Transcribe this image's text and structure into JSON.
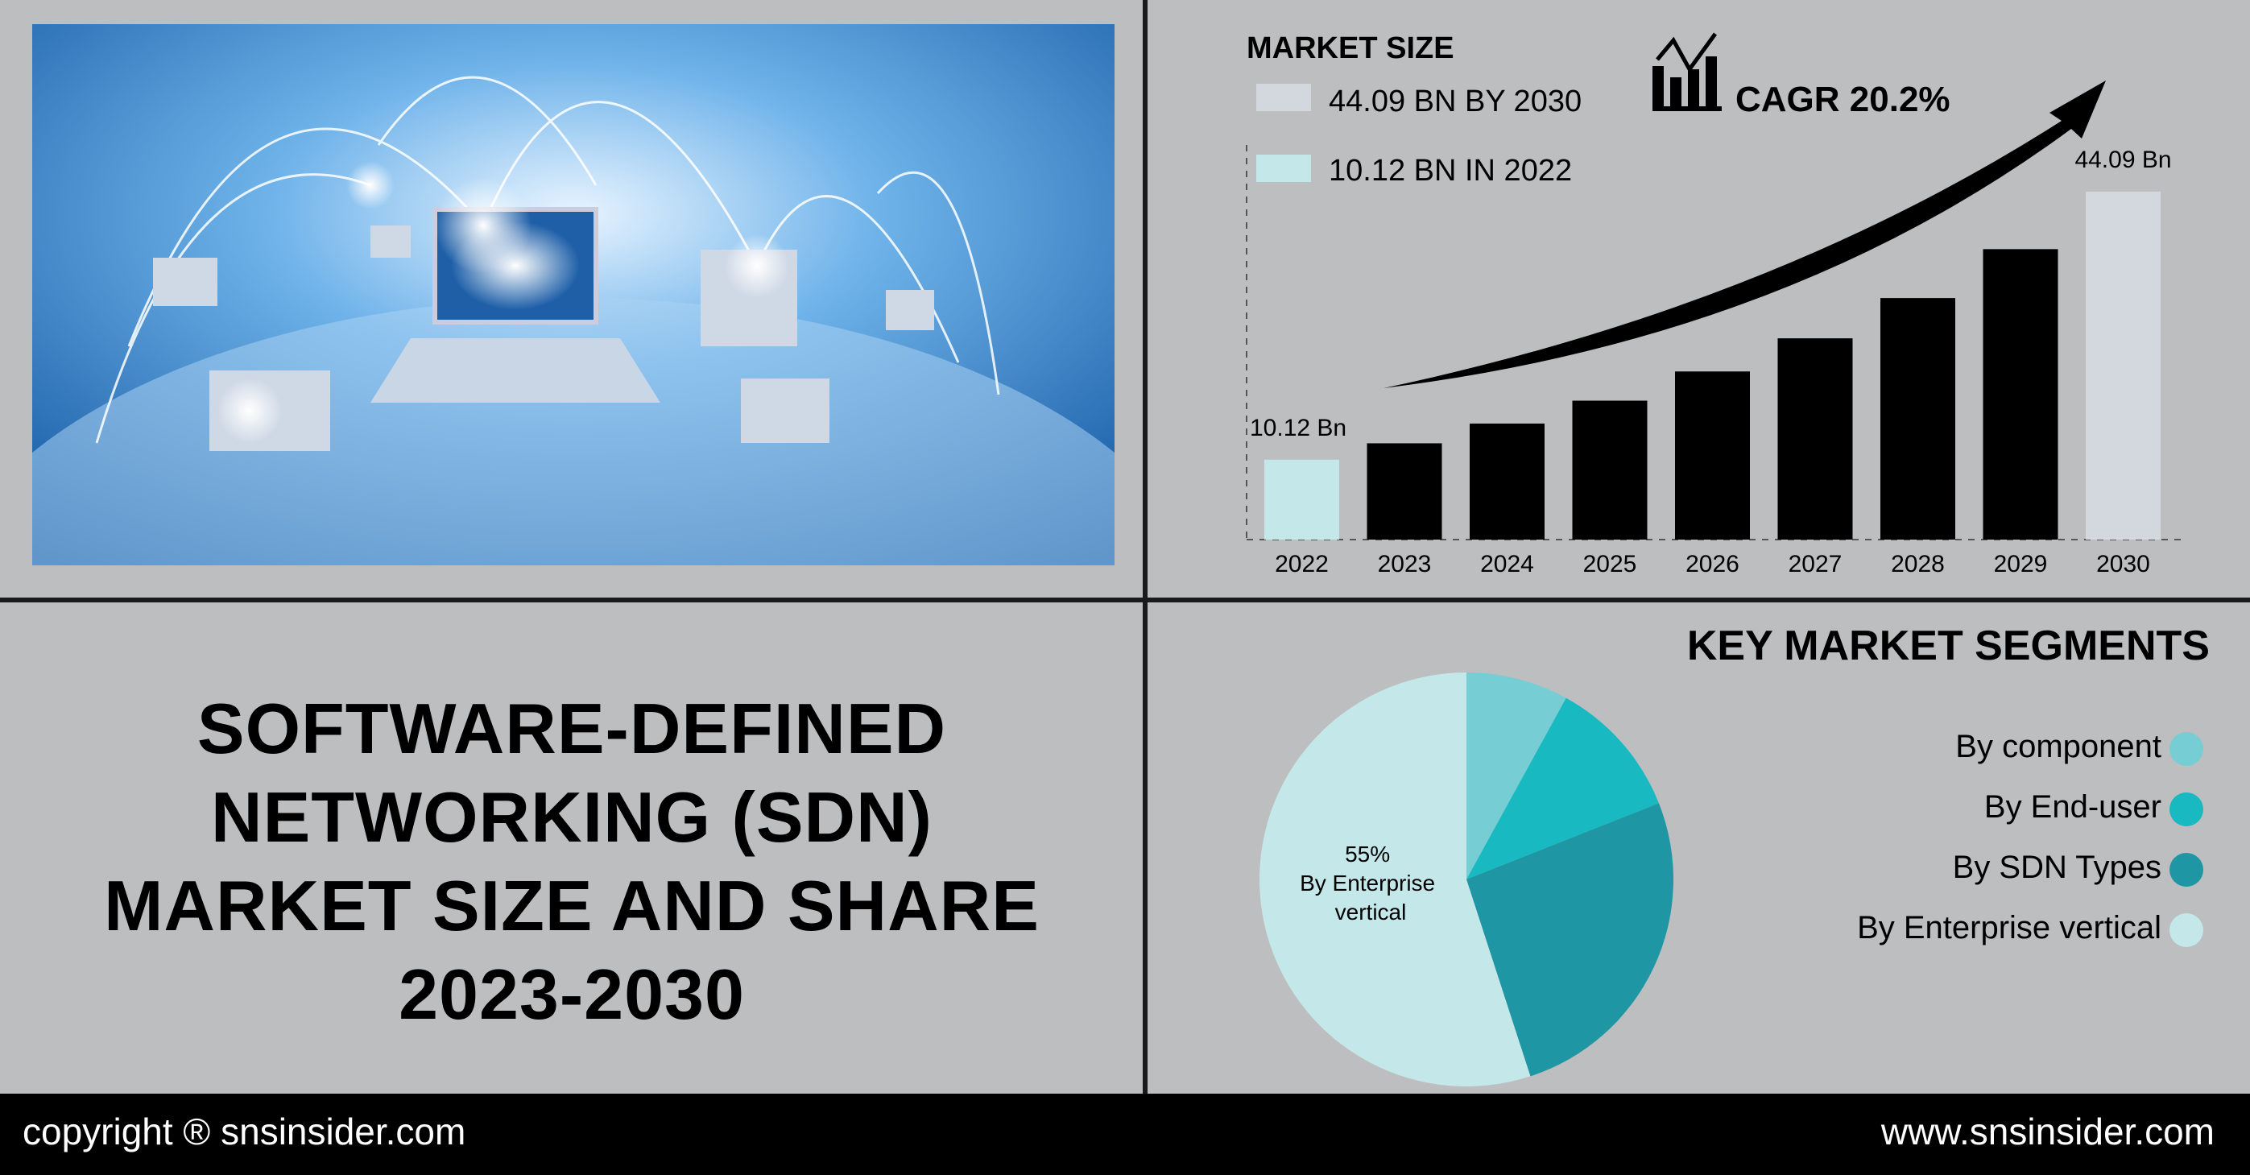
{
  "title_lines": [
    "SOFTWARE-DEFINED",
    "NETWORKING (SDN)",
    "MARKET SIZE AND SHARE",
    "2023-2030"
  ],
  "footer": {
    "copyright": "copyright ® snsinsider.com",
    "website": "www.snsinsider.com"
  },
  "photo": {
    "subject": "laptops-connected-over-globe"
  },
  "chart_data": [
    {
      "type": "bar",
      "title": "MARKET SIZE",
      "cagr_label": "CAGR 20.2%",
      "legend": [
        {
          "label": "44.09 BN BY 2030",
          "color": "#d2d8de"
        },
        {
          "label": "10.12 BN IN 2022",
          "color": "#c4e8ea"
        }
      ],
      "categories": [
        "2022",
        "2023",
        "2024",
        "2025",
        "2026",
        "2027",
        "2028",
        "2029",
        "2030"
      ],
      "values": [
        10.12,
        12.2,
        14.7,
        17.6,
        21.3,
        25.5,
        30.6,
        36.8,
        44.09
      ],
      "colors": [
        "#c4e8ea",
        "#000000",
        "#000000",
        "#000000",
        "#000000",
        "#000000",
        "#000000",
        "#000000",
        "#d2d8de"
      ],
      "data_labels": {
        "0": "10.12 Bn",
        "8": "44.09 Bn"
      },
      "ylim": [
        0,
        50
      ],
      "grid": false
    },
    {
      "type": "pie",
      "title": "KEY MARKET SEGMENTS",
      "slices": [
        {
          "label": "By component",
          "value": 8,
          "color": "#76cdd3"
        },
        {
          "label": "By End-user",
          "value": 11,
          "color": "#18b9c1"
        },
        {
          "label": "By SDN Types",
          "value": 26,
          "color": "#1f96a3"
        },
        {
          "label": "By Enterprise vertical",
          "value": 55,
          "color": "#c4e8ea"
        }
      ],
      "slice_label": [
        "55%",
        "By Enterprise",
        "vertical"
      ],
      "legend_placement": "right"
    }
  ]
}
